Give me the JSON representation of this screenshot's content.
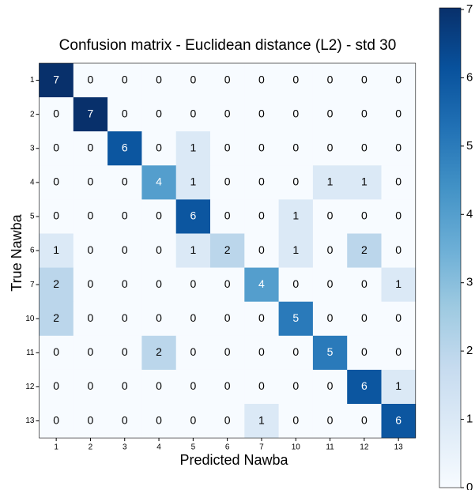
{
  "chart_data": {
    "type": "heatmap",
    "title": "Confusion matrix - Euclidean distance (L2) - std 30",
    "xlabel": "Predicted Nawba",
    "ylabel": "True Nawba",
    "x_categories": [
      "1",
      "2",
      "3",
      "4",
      "5",
      "6",
      "7",
      "10",
      "11",
      "12",
      "13"
    ],
    "y_categories": [
      "1",
      "2",
      "3",
      "4",
      "5",
      "6",
      "7",
      "10",
      "11",
      "12",
      "13"
    ],
    "values": [
      [
        7,
        0,
        0,
        0,
        0,
        0,
        0,
        0,
        0,
        0,
        0
      ],
      [
        0,
        7,
        0,
        0,
        0,
        0,
        0,
        0,
        0,
        0,
        0
      ],
      [
        0,
        0,
        6,
        0,
        1,
        0,
        0,
        0,
        0,
        0,
        0
      ],
      [
        0,
        0,
        0,
        4,
        1,
        0,
        0,
        0,
        1,
        1,
        0
      ],
      [
        0,
        0,
        0,
        0,
        6,
        0,
        0,
        1,
        0,
        0,
        0
      ],
      [
        1,
        0,
        0,
        0,
        1,
        2,
        0,
        1,
        0,
        2,
        0
      ],
      [
        2,
        0,
        0,
        0,
        0,
        0,
        4,
        0,
        0,
        0,
        1
      ],
      [
        2,
        0,
        0,
        0,
        0,
        0,
        0,
        5,
        0,
        0,
        0
      ],
      [
        0,
        0,
        0,
        2,
        0,
        0,
        0,
        0,
        5,
        0,
        0
      ],
      [
        0,
        0,
        0,
        0,
        0,
        0,
        0,
        0,
        0,
        6,
        1
      ],
      [
        0,
        0,
        0,
        0,
        0,
        0,
        1,
        0,
        0,
        0,
        6
      ]
    ],
    "colormap": "Blues",
    "colors": [
      "#f7fbff",
      "#deebf7",
      "#c6dbef",
      "#9ecae1",
      "#6baed6",
      "#4292c6",
      "#2171b5",
      "#08519c",
      "#08306b"
    ],
    "clim": [
      0,
      7
    ],
    "cticks": [
      0,
      1,
      2,
      3,
      4,
      5,
      6,
      7
    ]
  }
}
